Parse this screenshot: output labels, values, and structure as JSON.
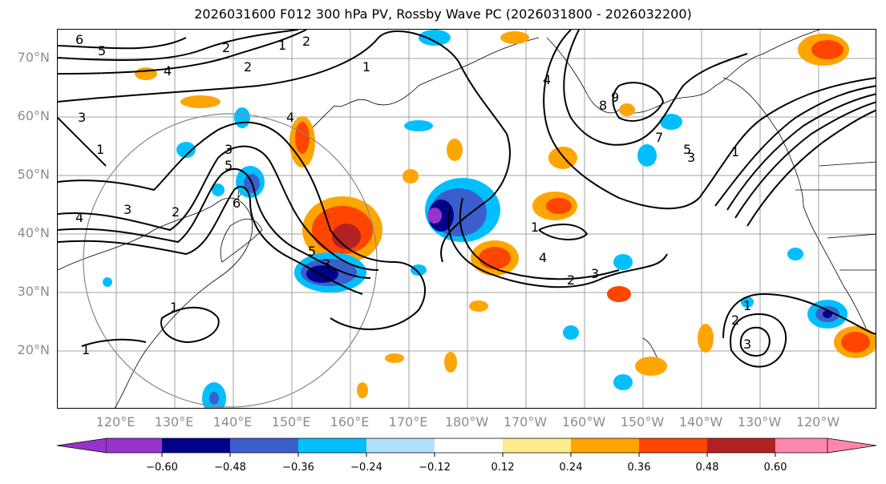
{
  "title": "2026031600 F012 300 hPa PV, Rossby Wave PC (2026031800 - 2026032200)",
  "lat_labels": [
    "70°N",
    "60°N",
    "50°N",
    "40°N",
    "30°N",
    "20°N"
  ],
  "lon_labels": [
    "120°E",
    "130°E",
    "140°E",
    "150°E",
    "160°E",
    "170°E",
    "180°W",
    "170°W",
    "160°W",
    "150°W",
    "140°W",
    "130°W",
    "120°W"
  ],
  "colorbar": {
    "colors": [
      "#9933cc",
      "#00008b",
      "#3a5fcd",
      "#00bfff",
      "#b0e2ff",
      "#ffffff",
      "#ffec8b",
      "#ffa500",
      "#ff4500",
      "#b22222",
      "#ff88aa"
    ],
    "ticks": [
      "−0.60",
      "−0.48",
      "−0.36",
      "−0.24",
      "−0.12",
      "0.12",
      "0.24",
      "0.36",
      "0.48",
      "0.60"
    ]
  },
  "contour_labels": [
    "6",
    "5",
    "4",
    "3",
    "2",
    "1",
    "3",
    "2",
    "1",
    "4",
    "3",
    "5",
    "6",
    "4",
    "5",
    "3",
    "2",
    "1",
    "8",
    "9",
    "7",
    "5",
    "3",
    "1",
    "4",
    "3",
    "2",
    "1",
    "4",
    "1",
    "2",
    "3",
    "1",
    "2",
    "1"
  ]
}
